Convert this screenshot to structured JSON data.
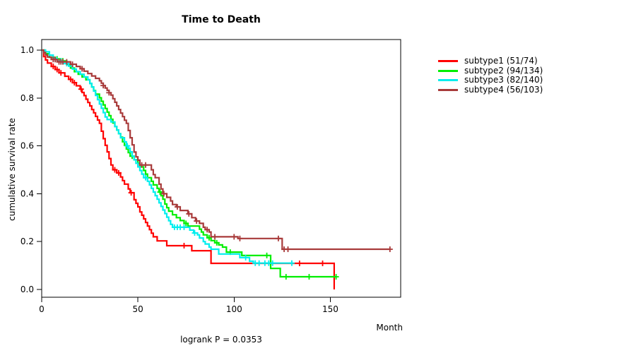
{
  "title": "Time to Death",
  "y_label": "cumulative survival rate",
  "x_label": "Month",
  "footer": "logrank P = 0.0353",
  "chart_data": {
    "type": "line",
    "variant": "kaplan-meier-step",
    "title": "Time to Death",
    "xlabel": "Month",
    "ylabel": "cumulative survival rate",
    "annotation": "logrank P = 0.0353",
    "xlim": [
      0,
      186
    ],
    "ylim": [
      0,
      1.0
    ],
    "x_ticks": [
      0,
      50,
      100,
      150
    ],
    "y_ticks": [
      0.0,
      0.2,
      0.4,
      0.6,
      0.8,
      1.0
    ],
    "grid": false,
    "legend_position": "right-outside",
    "series": [
      {
        "name": "subtype1 (51/74)",
        "color": "#ff0000",
        "steps": [
          [
            0,
            1
          ],
          [
            1,
            0.973
          ],
          [
            2,
            0.959
          ],
          [
            3,
            0.946
          ],
          [
            5,
            0.932
          ],
          [
            7,
            0.919
          ],
          [
            9,
            0.905
          ],
          [
            12,
            0.891
          ],
          [
            14,
            0.878
          ],
          [
            16,
            0.864
          ],
          [
            18,
            0.851
          ],
          [
            20,
            0.837
          ],
          [
            21,
            0.823
          ],
          [
            22,
            0.81
          ],
          [
            23,
            0.795
          ],
          [
            24,
            0.781
          ],
          [
            25,
            0.767
          ],
          [
            26,
            0.752
          ],
          [
            27,
            0.738
          ],
          [
            28,
            0.723
          ],
          [
            29,
            0.708
          ],
          [
            30,
            0.694
          ],
          [
            31,
            0.661
          ],
          [
            32,
            0.63
          ],
          [
            33,
            0.602
          ],
          [
            34,
            0.575
          ],
          [
            35,
            0.547
          ],
          [
            36,
            0.52
          ],
          [
            37,
            0.5
          ],
          [
            39,
            0.487
          ],
          [
            41,
            0.47
          ],
          [
            42,
            0.455
          ],
          [
            43,
            0.44
          ],
          [
            45,
            0.42
          ],
          [
            46,
            0.404
          ],
          [
            48,
            0.375
          ],
          [
            49,
            0.36
          ],
          [
            50,
            0.345
          ],
          [
            51,
            0.324
          ],
          [
            52,
            0.31
          ],
          [
            53,
            0.295
          ],
          [
            54,
            0.28
          ],
          [
            55,
            0.265
          ],
          [
            56,
            0.25
          ],
          [
            57,
            0.235
          ],
          [
            58,
            0.22
          ],
          [
            60,
            0.203
          ],
          [
            65,
            0.183
          ],
          [
            78,
            0.162
          ],
          [
            88,
            0.109
          ],
          [
            152,
            0.109
          ],
          [
            152,
            0
          ]
        ],
        "censors": [
          [
            6,
            0.932
          ],
          [
            8,
            0.919
          ],
          [
            10,
            0.905
          ],
          [
            15,
            0.878
          ],
          [
            17,
            0.864
          ],
          [
            20.5,
            0.837
          ],
          [
            38,
            0.5
          ],
          [
            40,
            0.487
          ],
          [
            46.5,
            0.404
          ],
          [
            74,
            0.183
          ],
          [
            134,
            0.109
          ],
          [
            146,
            0.109
          ]
        ]
      },
      {
        "name": "subtype2 (94/134)",
        "color": "#00ee00",
        "steps": [
          [
            0,
            1
          ],
          [
            2,
            0.985
          ],
          [
            4,
            0.97
          ],
          [
            7,
            0.963
          ],
          [
            10,
            0.955
          ],
          [
            13,
            0.94
          ],
          [
            15,
            0.925
          ],
          [
            17,
            0.91
          ],
          [
            19,
            0.899
          ],
          [
            21,
            0.888
          ],
          [
            23,
            0.876
          ],
          [
            25,
            0.861
          ],
          [
            26,
            0.846
          ],
          [
            27,
            0.831
          ],
          [
            28,
            0.816
          ],
          [
            30,
            0.801
          ],
          [
            31,
            0.786
          ],
          [
            32,
            0.771
          ],
          [
            33,
            0.756
          ],
          [
            34,
            0.741
          ],
          [
            35,
            0.726
          ],
          [
            36,
            0.711
          ],
          [
            37,
            0.696
          ],
          [
            38,
            0.681
          ],
          [
            39,
            0.666
          ],
          [
            40,
            0.651
          ],
          [
            41,
            0.636
          ],
          [
            42,
            0.617
          ],
          [
            43,
            0.602
          ],
          [
            44,
            0.587
          ],
          [
            45,
            0.572
          ],
          [
            46,
            0.557
          ],
          [
            48,
            0.542
          ],
          [
            50,
            0.527
          ],
          [
            51,
            0.512
          ],
          [
            53,
            0.497
          ],
          [
            54,
            0.482
          ],
          [
            55,
            0.467
          ],
          [
            57,
            0.452
          ],
          [
            58,
            0.437
          ],
          [
            60,
            0.422
          ],
          [
            61,
            0.407
          ],
          [
            62,
            0.392
          ],
          [
            63,
            0.377
          ],
          [
            64,
            0.357
          ],
          [
            65,
            0.342
          ],
          [
            66,
            0.327
          ],
          [
            68,
            0.312
          ],
          [
            70,
            0.3
          ],
          [
            72,
            0.288
          ],
          [
            74,
            0.276
          ],
          [
            76,
            0.265
          ],
          [
            82,
            0.252
          ],
          [
            83,
            0.24
          ],
          [
            84,
            0.228
          ],
          [
            86,
            0.216
          ],
          [
            88,
            0.204
          ],
          [
            90,
            0.195
          ],
          [
            92,
            0.186
          ],
          [
            94,
            0.177
          ],
          [
            96,
            0.156
          ],
          [
            104,
            0.142
          ],
          [
            119,
            0.088
          ],
          [
            124,
            0.053
          ],
          [
            153,
            0.053
          ]
        ],
        "censors": [
          [
            8,
            0.963
          ],
          [
            11,
            0.955
          ],
          [
            47,
            0.557
          ],
          [
            61.5,
            0.407
          ],
          [
            75,
            0.276
          ],
          [
            87,
            0.216
          ],
          [
            91,
            0.195
          ],
          [
            98,
            0.156
          ],
          [
            117,
            0.142
          ],
          [
            127,
            0.053
          ],
          [
            139,
            0.053
          ],
          [
            153,
            0.053
          ]
        ]
      },
      {
        "name": "subtype3 (82/140)",
        "color": "#00eeee",
        "steps": [
          [
            0,
            1
          ],
          [
            2,
            0.993
          ],
          [
            4,
            0.979
          ],
          [
            6,
            0.966
          ],
          [
            8,
            0.955
          ],
          [
            11,
            0.944
          ],
          [
            14,
            0.933
          ],
          [
            16,
            0.921
          ],
          [
            18,
            0.91
          ],
          [
            20,
            0.899
          ],
          [
            22,
            0.888
          ],
          [
            24,
            0.876
          ],
          [
            25,
            0.861
          ],
          [
            26,
            0.846
          ],
          [
            27,
            0.829
          ],
          [
            28,
            0.811
          ],
          [
            29,
            0.793
          ],
          [
            30,
            0.775
          ],
          [
            31,
            0.757
          ],
          [
            32,
            0.739
          ],
          [
            33,
            0.721
          ],
          [
            34,
            0.71
          ],
          [
            36,
            0.7
          ],
          [
            38,
            0.681
          ],
          [
            39,
            0.666
          ],
          [
            40,
            0.651
          ],
          [
            41,
            0.634
          ],
          [
            43,
            0.617
          ],
          [
            44,
            0.6
          ],
          [
            45,
            0.59
          ],
          [
            46,
            0.575
          ],
          [
            47,
            0.557
          ],
          [
            48,
            0.542
          ],
          [
            49,
            0.527
          ],
          [
            50,
            0.512
          ],
          [
            51,
            0.497
          ],
          [
            52,
            0.482
          ],
          [
            53,
            0.467
          ],
          [
            55,
            0.452
          ],
          [
            56,
            0.437
          ],
          [
            57,
            0.422
          ],
          [
            58,
            0.407
          ],
          [
            59,
            0.392
          ],
          [
            60,
            0.377
          ],
          [
            61,
            0.362
          ],
          [
            62,
            0.347
          ],
          [
            63,
            0.332
          ],
          [
            64,
            0.317
          ],
          [
            65,
            0.302
          ],
          [
            66,
            0.287
          ],
          [
            67,
            0.272
          ],
          [
            68,
            0.26
          ],
          [
            77,
            0.248
          ],
          [
            79,
            0.236
          ],
          [
            81,
            0.228
          ],
          [
            82,
            0.215
          ],
          [
            84,
            0.2
          ],
          [
            85,
            0.19
          ],
          [
            87,
            0.177
          ],
          [
            88,
            0.168
          ],
          [
            92,
            0.148
          ],
          [
            103,
            0.133
          ],
          [
            108,
            0.118
          ],
          [
            110,
            0.11
          ],
          [
            130,
            0.11
          ]
        ],
        "censors": [
          [
            10,
            0.955
          ],
          [
            13,
            0.944
          ],
          [
            44.5,
            0.6
          ],
          [
            54,
            0.467
          ],
          [
            69,
            0.26
          ],
          [
            70.5,
            0.26
          ],
          [
            72,
            0.26
          ],
          [
            74,
            0.26
          ],
          [
            79.5,
            0.236
          ],
          [
            106,
            0.133
          ],
          [
            111,
            0.11
          ],
          [
            113,
            0.11
          ],
          [
            116,
            0.11
          ],
          [
            118,
            0.11
          ],
          [
            120,
            0.11
          ],
          [
            130,
            0.11
          ]
        ]
      },
      {
        "name": "subtype4 (56/103)",
        "color": "#a83a3a",
        "steps": [
          [
            0,
            1
          ],
          [
            1,
            0.99
          ],
          [
            2,
            0.98
          ],
          [
            3,
            0.971
          ],
          [
            5,
            0.961
          ],
          [
            8,
            0.951
          ],
          [
            15,
            0.941
          ],
          [
            18,
            0.932
          ],
          [
            20,
            0.922
          ],
          [
            22,
            0.912
          ],
          [
            24,
            0.902
          ],
          [
            26,
            0.892
          ],
          [
            28,
            0.882
          ],
          [
            30,
            0.872
          ],
          [
            31,
            0.862
          ],
          [
            32,
            0.852
          ],
          [
            33,
            0.842
          ],
          [
            34,
            0.832
          ],
          [
            35,
            0.822
          ],
          [
            36,
            0.812
          ],
          [
            37,
            0.797
          ],
          [
            38,
            0.782
          ],
          [
            39,
            0.767
          ],
          [
            40,
            0.752
          ],
          [
            41,
            0.737
          ],
          [
            42,
            0.722
          ],
          [
            43,
            0.707
          ],
          [
            44,
            0.694
          ],
          [
            45,
            0.664
          ],
          [
            46,
            0.634
          ],
          [
            47,
            0.604
          ],
          [
            48,
            0.574
          ],
          [
            49,
            0.554
          ],
          [
            50,
            0.54
          ],
          [
            51,
            0.52
          ],
          [
            57,
            0.5
          ],
          [
            58,
            0.48
          ],
          [
            59,
            0.467
          ],
          [
            61,
            0.44
          ],
          [
            62,
            0.42
          ],
          [
            63,
            0.4
          ],
          [
            65,
            0.385
          ],
          [
            67,
            0.37
          ],
          [
            68,
            0.355
          ],
          [
            70,
            0.345
          ],
          [
            72,
            0.33
          ],
          [
            76,
            0.316
          ],
          [
            78,
            0.3
          ],
          [
            80,
            0.286
          ],
          [
            82,
            0.276
          ],
          [
            84,
            0.26
          ],
          [
            85,
            0.25
          ],
          [
            87,
            0.24
          ],
          [
            88,
            0.22
          ],
          [
            102,
            0.213
          ],
          [
            125,
            0.168
          ],
          [
            181,
            0.168
          ]
        ],
        "censors": [
          [
            6,
            0.961
          ],
          [
            7,
            0.961
          ],
          [
            9,
            0.951
          ],
          [
            10,
            0.951
          ],
          [
            11,
            0.951
          ],
          [
            13,
            0.951
          ],
          [
            16,
            0.941
          ],
          [
            21,
            0.922
          ],
          [
            32,
            0.852
          ],
          [
            35,
            0.822
          ],
          [
            52,
            0.52
          ],
          [
            54,
            0.52
          ],
          [
            63.5,
            0.4
          ],
          [
            70.5,
            0.345
          ],
          [
            76.5,
            0.316
          ],
          [
            80.5,
            0.286
          ],
          [
            86,
            0.25
          ],
          [
            90,
            0.22
          ],
          [
            100,
            0.22
          ],
          [
            103,
            0.213
          ],
          [
            123,
            0.213
          ],
          [
            126,
            0.168
          ],
          [
            128,
            0.168
          ],
          [
            181,
            0.168
          ]
        ]
      }
    ]
  }
}
